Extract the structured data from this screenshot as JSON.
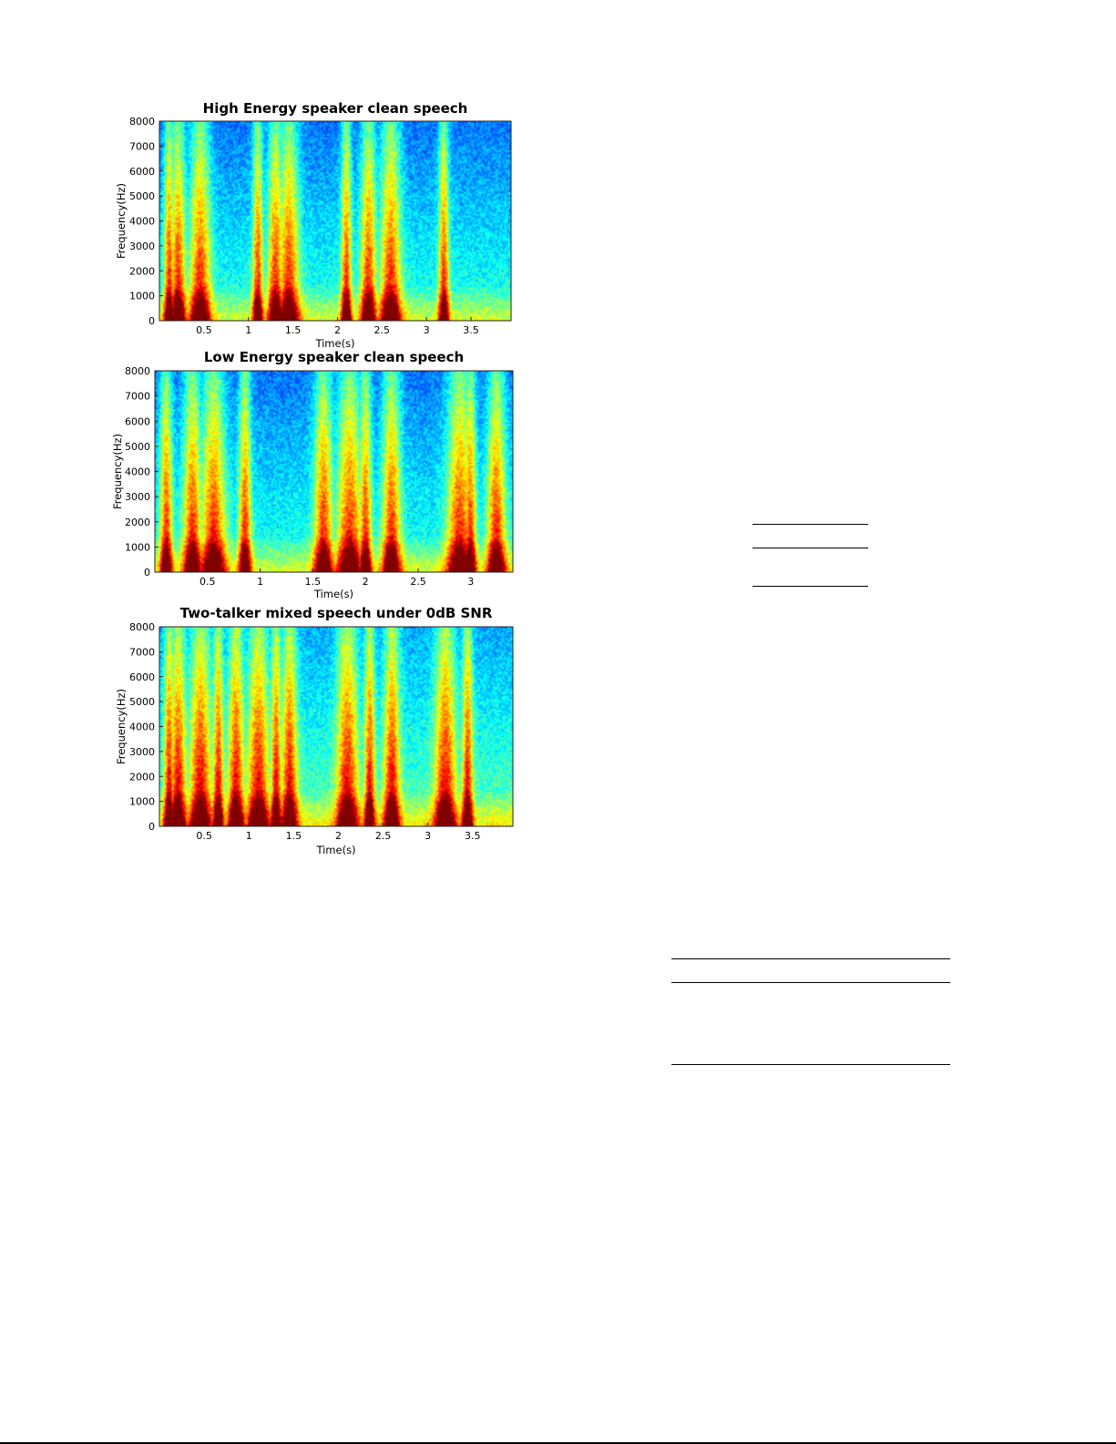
{
  "chart_data": [
    {
      "type": "heatmap",
      "title": "High Energy speaker clean speech",
      "xlabel": "Time(s)",
      "ylabel": "Frequency(Hz)",
      "xlim": [
        0.0,
        3.95
      ],
      "ylim": [
        0,
        8000
      ],
      "xticks": [
        0.5,
        1,
        1.5,
        2,
        2.5,
        3,
        3.5
      ],
      "xtick_labels": [
        "0.5",
        "1",
        "1.5",
        "2",
        "2.5",
        "3",
        "3.5"
      ],
      "yticks": [
        0,
        1000,
        2000,
        3000,
        4000,
        5000,
        6000,
        7000,
        8000
      ],
      "ytick_labels": [
        "0",
        "1000",
        "2000",
        "3000",
        "4000",
        "5000",
        "6000",
        "7000",
        "8000"
      ],
      "colormap": "jet",
      "grid": false,
      "high_energy_streaks_s": [
        0.1,
        0.2,
        0.45,
        1.1,
        1.3,
        1.45,
        2.1,
        2.35,
        2.6,
        3.2
      ]
    },
    {
      "type": "heatmap",
      "title": "Low Energy speaker clean speech",
      "xlabel": "Time(s)",
      "ylabel": "Frequency(Hz)",
      "xlim": [
        0.0,
        3.4
      ],
      "ylim": [
        0,
        8000
      ],
      "xticks": [
        0.5,
        1,
        1.5,
        2,
        2.5,
        3
      ],
      "xtick_labels": [
        "0.5",
        "1",
        "1.5",
        "2",
        "2.5",
        "3"
      ],
      "yticks": [
        0,
        1000,
        2000,
        3000,
        4000,
        5000,
        6000,
        7000,
        8000
      ],
      "ytick_labels": [
        "0",
        "1000",
        "2000",
        "3000",
        "4000",
        "5000",
        "6000",
        "7000",
        "8000"
      ],
      "colormap": "jet",
      "grid": false,
      "high_energy_streaks_s": [
        0.1,
        0.35,
        0.55,
        0.85,
        1.6,
        1.85,
        2.0,
        2.25,
        2.9,
        3.0,
        3.25
      ]
    },
    {
      "type": "heatmap",
      "title": "Two-talker mixed speech under 0dB SNR",
      "xlabel": "Time(s)",
      "ylabel": "Frequency(Hz)",
      "xlim": [
        0.0,
        3.95
      ],
      "ylim": [
        0,
        8000
      ],
      "xticks": [
        0.5,
        1,
        1.5,
        2,
        2.5,
        3,
        3.5
      ],
      "xtick_labels": [
        "0.5",
        "1",
        "1.5",
        "2",
        "2.5",
        "3",
        "3.5"
      ],
      "yticks": [
        0,
        1000,
        2000,
        3000,
        4000,
        5000,
        6000,
        7000,
        8000
      ],
      "ytick_labels": [
        "0",
        "1000",
        "2000",
        "3000",
        "4000",
        "5000",
        "6000",
        "7000",
        "8000"
      ],
      "colormap": "jet",
      "grid": false,
      "high_energy_streaks_s": [
        0.1,
        0.2,
        0.45,
        0.65,
        0.85,
        1.1,
        1.3,
        1.45,
        2.1,
        2.35,
        2.6,
        3.2,
        3.45
      ]
    }
  ]
}
